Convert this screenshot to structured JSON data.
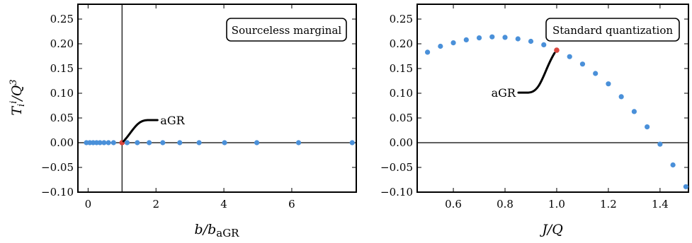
{
  "chart_data": [
    {
      "type": "scatter",
      "title": "",
      "legend_box": "Sourceless marginal",
      "xlabel": "b/b_aGR",
      "xlabel_main": "b/b",
      "xlabel_sub": "aGR",
      "ylabel": "T_i^i/Q^3",
      "xlim": [
        -0.3,
        7.9
      ],
      "ylim": [
        -0.1,
        0.28
      ],
      "x_ticks": [
        "0",
        "2",
        "4",
        "6"
      ],
      "y_ticks": [
        "0.25",
        "0.20",
        "0.15",
        "0.10",
        "0.05",
        "0.00",
        "−0.05",
        "−0.10"
      ],
      "reference_lines": {
        "horizontal_y": 0,
        "vertical_x": 1
      },
      "annotation": {
        "text": "aGR",
        "x": 1,
        "y": 0
      },
      "series": [
        {
          "color": "#4a90d9",
          "x": [
            -0.05,
            0.05,
            0.15,
            0.25,
            0.35,
            0.47,
            0.6,
            0.75,
            1.15,
            1.45,
            1.8,
            2.2,
            2.7,
            3.27,
            4.02,
            4.97,
            6.2,
            7.78
          ],
          "y": [
            0,
            0,
            0,
            0,
            0,
            0,
            0,
            0,
            0,
            0,
            0,
            0,
            0,
            0,
            0,
            0,
            0,
            0
          ]
        }
      ],
      "highlight": {
        "color": "#d9463e",
        "x": 1,
        "y": 0
      }
    },
    {
      "type": "scatter",
      "title": "",
      "legend_box": "Standard quantization",
      "xlabel": "J/Q",
      "xlim": [
        0.46,
        1.51
      ],
      "ylim": [
        -0.1,
        0.28
      ],
      "x_ticks": [
        "0.6",
        "0.8",
        "1.0",
        "1.2",
        "1.4"
      ],
      "y_ticks": [
        "0.25",
        "0.20",
        "0.15",
        "0.10",
        "0.05",
        "0.00",
        "−0.05",
        "−0.10"
      ],
      "reference_lines": {
        "horizontal_y": 0
      },
      "annotation": {
        "text": "aGR",
        "x": 1,
        "y": 0.187
      },
      "series": [
        {
          "color": "#4a90d9",
          "x": [
            0.5,
            0.55,
            0.6,
            0.65,
            0.7,
            0.75,
            0.8,
            0.85,
            0.9,
            0.95,
            1.05,
            1.1,
            1.15,
            1.2,
            1.25,
            1.3,
            1.35,
            1.4,
            1.45,
            1.5
          ],
          "y": [
            0.183,
            0.195,
            0.202,
            0.208,
            0.212,
            0.214,
            0.213,
            0.21,
            0.205,
            0.198,
            0.174,
            0.159,
            0.14,
            0.119,
            0.093,
            0.063,
            0.032,
            -0.003,
            -0.045,
            -0.089
          ]
        }
      ],
      "highlight": {
        "color": "#d9463e",
        "x": 1,
        "y": 0.187
      }
    }
  ]
}
